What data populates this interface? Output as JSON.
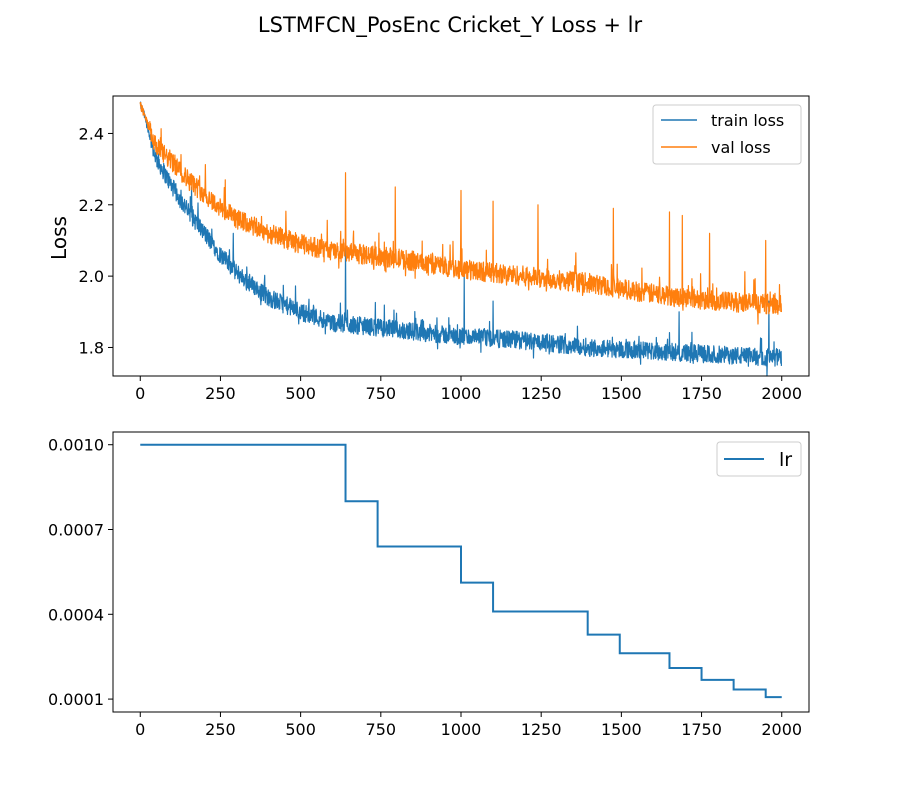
{
  "figure": {
    "title": "LSTMFCN_PosEnc Cricket_Y Loss + lr"
  },
  "colors": {
    "train": "#1f77b4",
    "val": "#ff7f0e",
    "lr": "#1f77b4"
  },
  "chart_data": [
    {
      "type": "line",
      "title": "",
      "xlabel": "",
      "ylabel": "Loss",
      "xlim": [
        -85,
        2085
      ],
      "ylim": [
        1.72,
        2.505
      ],
      "xticks": [
        0,
        250,
        500,
        750,
        1000,
        1250,
        1500,
        1750,
        2000
      ],
      "yticks": [
        1.8,
        2.0,
        2.2,
        2.4
      ],
      "ytick_labels": [
        "1.8",
        "2.0",
        "2.2",
        "2.4"
      ],
      "legend": "top-right",
      "n_points": 2000,
      "series": [
        {
          "name": "train loss",
          "color": "#1f77b4",
          "trend_x": [
            0,
            10,
            25,
            50,
            100,
            150,
            200,
            250,
            300,
            400,
            500,
            600,
            700,
            800,
            1000,
            1200,
            1400,
            1600,
            1800,
            2000
          ],
          "trend_y": [
            2.48,
            2.46,
            2.41,
            2.33,
            2.25,
            2.18,
            2.12,
            2.06,
            2.01,
            1.94,
            1.9,
            1.87,
            1.86,
            1.85,
            1.83,
            1.82,
            1.8,
            1.79,
            1.78,
            1.77
          ],
          "noise": 0.025,
          "spikes": [
            [
              160,
              2.25
            ],
            [
              290,
              2.12
            ],
            [
              640,
              2.1
            ],
            [
              1010,
              2.0
            ],
            [
              1100,
              1.93
            ],
            [
              1680,
              1.9
            ],
            [
              1960,
              1.93
            ]
          ]
        },
        {
          "name": "val loss",
          "color": "#ff7f0e",
          "trend_x": [
            0,
            10,
            25,
            50,
            100,
            150,
            200,
            250,
            300,
            400,
            500,
            600,
            700,
            800,
            1000,
            1200,
            1400,
            1600,
            1800,
            2000
          ],
          "trend_y": [
            2.48,
            2.46,
            2.42,
            2.36,
            2.32,
            2.27,
            2.23,
            2.19,
            2.16,
            2.12,
            2.09,
            2.07,
            2.06,
            2.05,
            2.02,
            2.0,
            1.98,
            1.95,
            1.93,
            1.92
          ],
          "noise": 0.028,
          "spikes": [
            [
              265,
              2.27
            ],
            [
              640,
              2.29
            ],
            [
              795,
              2.25
            ],
            [
              1000,
              2.24
            ],
            [
              1100,
              2.21
            ],
            [
              1240,
              2.2
            ],
            [
              1475,
              2.19
            ],
            [
              1650,
              2.18
            ],
            [
              1690,
              2.17
            ],
            [
              1775,
              2.12
            ],
            [
              1950,
              2.1
            ]
          ]
        }
      ]
    },
    {
      "type": "line",
      "title": "",
      "xlabel": "",
      "ylabel": "",
      "xlim": [
        -85,
        2085
      ],
      "ylim": [
        5.43e-05,
        0.001045
      ],
      "xticks": [
        0,
        250,
        500,
        750,
        1000,
        1250,
        1500,
        1750,
        2000
      ],
      "yticks": [
        0.0001,
        0.0004,
        0.0007,
        0.001
      ],
      "ytick_labels": [
        "0.0001",
        "0.0004",
        "0.0007",
        "0.0010"
      ],
      "legend": "top-right",
      "series": [
        {
          "name": "lr",
          "color": "#1f77b4",
          "step": true,
          "x": [
            0,
            640,
            740,
            1000,
            1100,
            1395,
            1495,
            1650,
            1750,
            1850,
            1950,
            2000
          ],
          "y": [
            0.001,
            0.0008,
            0.00064,
            0.000512,
            0.00041,
            0.000328,
            0.000262,
            0.00021,
            0.000168,
            0.000134,
            0.000107,
            0.000107
          ]
        }
      ]
    }
  ]
}
